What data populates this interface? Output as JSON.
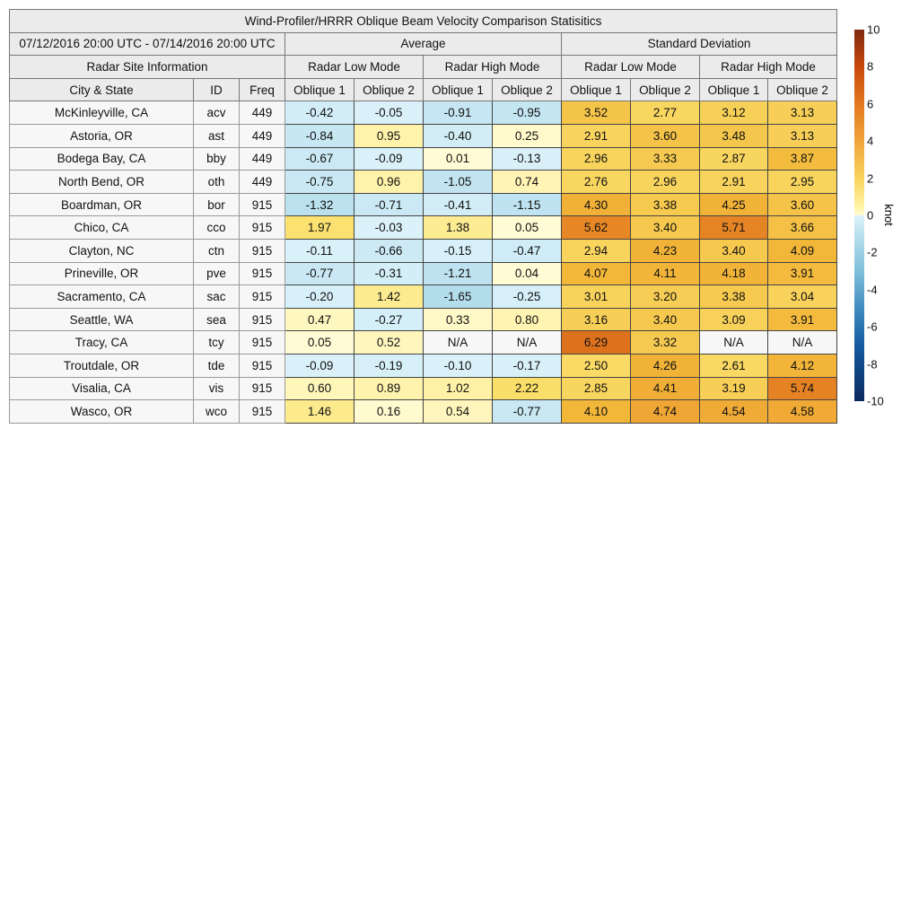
{
  "chart_data": {
    "type": "table",
    "title": "Wind-Profiler/HRRR Oblique Beam Velocity Comparison Statisitics",
    "date_range": "07/12/2016 20:00 UTC - 07/14/2016 20:00 UTC",
    "group_headers": [
      "Average",
      "Standard Deviation"
    ],
    "info_header": "Radar Site Information",
    "mode_headers": [
      "Radar Low Mode",
      "Radar High Mode",
      "Radar Low Mode",
      "Radar High Mode"
    ],
    "column_headers": [
      "City & State",
      "ID",
      "Freq",
      "Oblique 1",
      "Oblique 2",
      "Oblique 1",
      "Oblique 2",
      "Oblique 1",
      "Oblique 2",
      "Oblique 1",
      "Oblique 2"
    ],
    "rows": [
      [
        "McKinleyville, CA",
        "acv",
        "449",
        "-0.42",
        "-0.05",
        "-0.91",
        "-0.95",
        "3.52",
        "2.77",
        "3.12",
        "3.13"
      ],
      [
        "Astoria, OR",
        "ast",
        "449",
        "-0.84",
        "0.95",
        "-0.40",
        "0.25",
        "2.91",
        "3.60",
        "3.48",
        "3.13"
      ],
      [
        "Bodega Bay, CA",
        "bby",
        "449",
        "-0.67",
        "-0.09",
        "0.01",
        "-0.13",
        "2.96",
        "3.33",
        "2.87",
        "3.87"
      ],
      [
        "North Bend, OR",
        "oth",
        "449",
        "-0.75",
        "0.96",
        "-1.05",
        "0.74",
        "2.76",
        "2.96",
        "2.91",
        "2.95"
      ],
      [
        "Boardman, OR",
        "bor",
        "915",
        "-1.32",
        "-0.71",
        "-0.41",
        "-1.15",
        "4.30",
        "3.38",
        "4.25",
        "3.60"
      ],
      [
        "Chico, CA",
        "cco",
        "915",
        "1.97",
        "-0.03",
        "1.38",
        "0.05",
        "5.62",
        "3.40",
        "5.71",
        "3.66"
      ],
      [
        "Clayton, NC",
        "ctn",
        "915",
        "-0.11",
        "-0.66",
        "-0.15",
        "-0.47",
        "2.94",
        "4.23",
        "3.40",
        "4.09"
      ],
      [
        "Prineville, OR",
        "pve",
        "915",
        "-0.77",
        "-0.31",
        "-1.21",
        "0.04",
        "4.07",
        "4.11",
        "4.18",
        "3.91"
      ],
      [
        "Sacramento, CA",
        "sac",
        "915",
        "-0.20",
        "1.42",
        "-1.65",
        "-0.25",
        "3.01",
        "3.20",
        "3.38",
        "3.04"
      ],
      [
        "Seattle, WA",
        "sea",
        "915",
        "0.47",
        "-0.27",
        "0.33",
        "0.80",
        "3.16",
        "3.40",
        "3.09",
        "3.91"
      ],
      [
        "Tracy, CA",
        "tcy",
        "915",
        "0.05",
        "0.52",
        "N/A",
        "N/A",
        "6.29",
        "3.32",
        "N/A",
        "N/A"
      ],
      [
        "Troutdale, OR",
        "tde",
        "915",
        "-0.09",
        "-0.19",
        "-0.10",
        "-0.17",
        "2.50",
        "4.26",
        "2.61",
        "4.12"
      ],
      [
        "Visalia, CA",
        "vis",
        "915",
        "0.60",
        "0.89",
        "1.02",
        "2.22",
        "2.85",
        "4.41",
        "3.19",
        "5.74"
      ],
      [
        "Wasco, OR",
        "wco",
        "915",
        "1.46",
        "0.16",
        "0.54",
        "-0.77",
        "4.10",
        "4.74",
        "4.54",
        "4.58"
      ]
    ],
    "colorbar": {
      "label": "knot",
      "range": [
        -10,
        10
      ],
      "ticks": [
        "10",
        "8",
        "6",
        "4",
        "2",
        "0",
        "-2",
        "-4",
        "-6",
        "-8",
        "-10"
      ],
      "colormap": "diverging blue (negative) to yellow-orange-red (positive)"
    },
    "na_color": "#f7f7f7"
  }
}
